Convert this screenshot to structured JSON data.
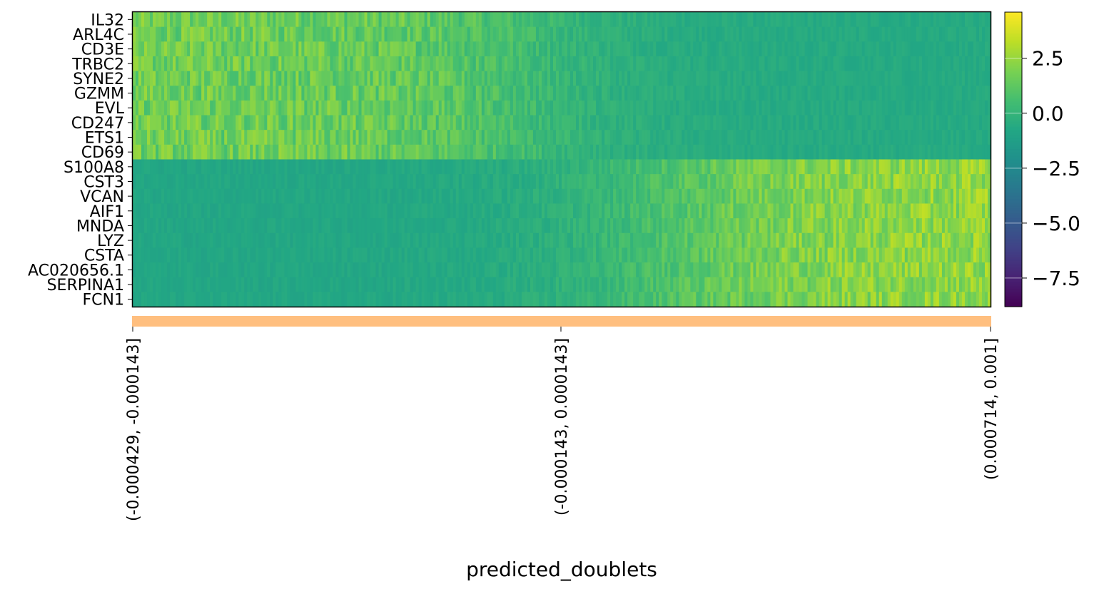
{
  "chart_data": {
    "type": "heatmap",
    "genes": [
      "IL32",
      "ARL4C",
      "CD3E",
      "TRBC2",
      "SYNE2",
      "GZMM",
      "EVL",
      "CD247",
      "ETS1",
      "CD69",
      "S100A8",
      "CST3",
      "VCAN",
      "AIF1",
      "MNDA",
      "LYZ",
      "CSTA",
      "AC020656.1",
      "SERPINA1",
      "FCN1"
    ],
    "gene_groups": [
      {
        "genes": [
          "IL32",
          "ARL4C",
          "CD3E",
          "TRBC2",
          "SYNE2",
          "GZMM",
          "EVL",
          "CD247",
          "ETS1",
          "CD69"
        ],
        "profile": "high_left_low_right"
      },
      {
        "genes": [
          "S100A8",
          "CST3",
          "VCAN",
          "AIF1",
          "MNDA",
          "LYZ",
          "CSTA",
          "AC020656.1",
          "SERPINA1",
          "FCN1"
        ],
        "profile": "low_left_high_right"
      }
    ],
    "x_groups": [
      "(-0.000429, -0.000143]",
      "(-0.000143, 0.000143]",
      "(0.000714, 0.001]"
    ],
    "group_color": "#ffbf7f",
    "xlabel": "predicted_doublets",
    "colorbar": {
      "colormap": "viridis",
      "vmin": -8.8,
      "vmax": 4.6,
      "ticks": [
        "2.5",
        "0.0",
        "−2.5",
        "−5.0",
        "−7.5"
      ],
      "tick_values": [
        2.5,
        0.0,
        -2.5,
        -5.0,
        -7.5
      ]
    },
    "value_ranges": {
      "high_left_start": 1.6,
      "high_right_end": -0.6,
      "low_left_start": -0.8,
      "low_right_end": 2.4
    }
  }
}
